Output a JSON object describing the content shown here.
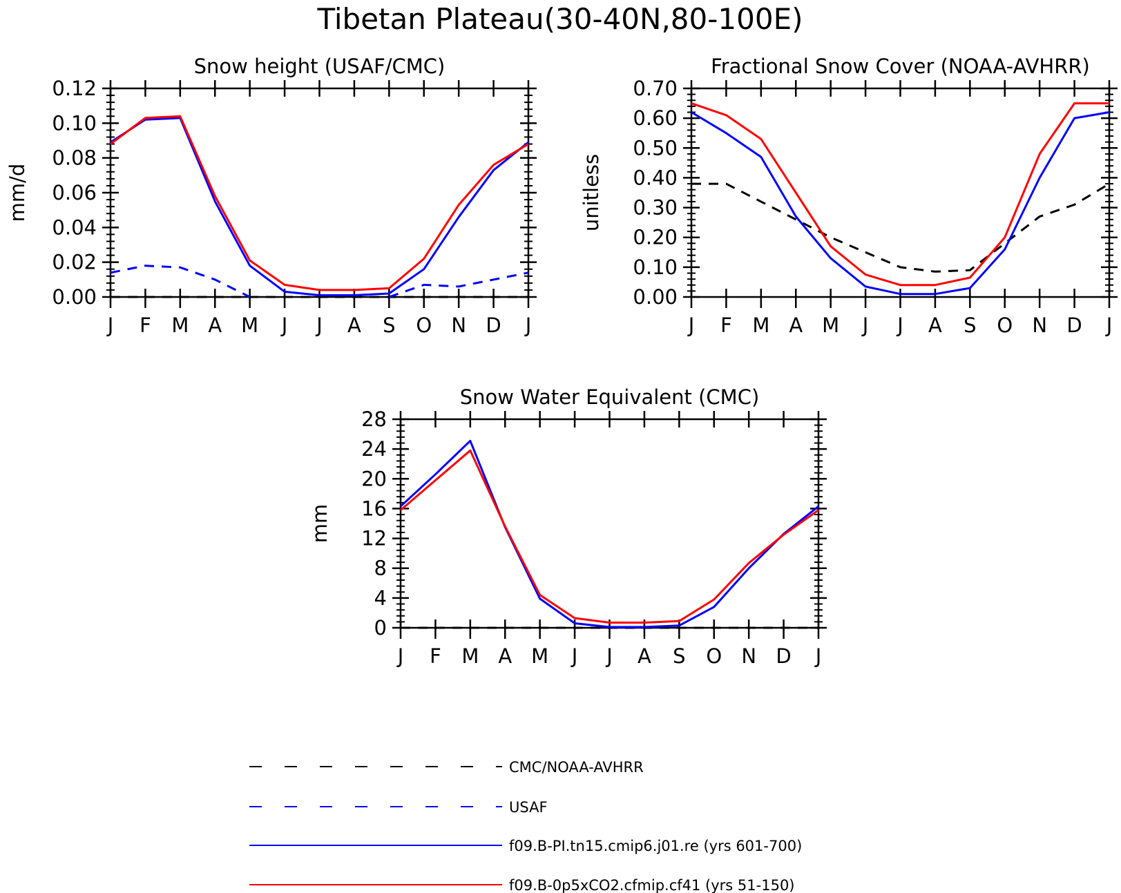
{
  "main_title": "Tibetan Plateau(30-40N,80-100E)",
  "colors": {
    "obs": "#000000",
    "usaf": "#0000ff",
    "pi": "#0000ff",
    "co2": "#ff0000"
  },
  "legend": [
    {
      "key": "obs",
      "label": "CMC/NOAA-AVHRR",
      "style": "dashed",
      "color": "#000000"
    },
    {
      "key": "usaf",
      "label": "USAF",
      "style": "dashed",
      "color": "#0000ff"
    },
    {
      "key": "pi",
      "label": "f09.B-PI.tn15.cmip6.j01.re (yrs 601-700)",
      "style": "solid",
      "color": "#0000ff"
    },
    {
      "key": "co2",
      "label": "f09.B-0p5xCO2.cfmip.cf41 (yrs 51-150)",
      "style": "solid",
      "color": "#ff0000"
    }
  ],
  "chart_data": [
    {
      "type": "line",
      "title": "Snow height (USAF/CMC)",
      "ylabel": "mm/d",
      "xlabel": "",
      "categories": [
        "J",
        "F",
        "M",
        "A",
        "M",
        "J",
        "J",
        "A",
        "S",
        "O",
        "N",
        "D",
        "J"
      ],
      "ylim": [
        0,
        0.12
      ],
      "yticks": [
        "0.00",
        "0.02",
        "0.04",
        "0.06",
        "0.08",
        "0.10",
        "0.12"
      ],
      "series": [
        {
          "name": "CMC/NOAA-AVHRR",
          "style": "dashed",
          "color": "#000000",
          "values": [
            0,
            0,
            0,
            0,
            0,
            0,
            0,
            0,
            0,
            0,
            0,
            0,
            0
          ]
        },
        {
          "name": "USAF",
          "style": "dashed",
          "color": "#0000ff",
          "values": [
            0.014,
            0.018,
            0.017,
            0.01,
            0.0,
            null,
            null,
            null,
            0.0,
            0.007,
            0.006,
            0.01,
            0.014
          ]
        },
        {
          "name": "f09.B-PI.tn15.cmip6.j01.re (yrs 601-700)",
          "style": "solid",
          "color": "#0000ff",
          "values": [
            0.089,
            0.102,
            0.103,
            0.055,
            0.018,
            0.003,
            0.001,
            0.001,
            0.002,
            0.016,
            0.046,
            0.073,
            0.089
          ]
        },
        {
          "name": "f09.B-0p5xCO2.cfmip.cf41 (yrs 51-150)",
          "style": "solid",
          "color": "#ff0000",
          "values": [
            0.088,
            0.103,
            0.104,
            0.058,
            0.021,
            0.007,
            0.004,
            0.004,
            0.005,
            0.022,
            0.053,
            0.076,
            0.088
          ]
        }
      ]
    },
    {
      "type": "line",
      "title": "Fractional Snow Cover (NOAA-AVHRR)",
      "ylabel": "unitless",
      "xlabel": "",
      "categories": [
        "J",
        "F",
        "M",
        "A",
        "M",
        "J",
        "J",
        "A",
        "S",
        "O",
        "N",
        "D",
        "J"
      ],
      "ylim": [
        0,
        0.7
      ],
      "yticks": [
        "0.00",
        "0.10",
        "0.20",
        "0.30",
        "0.40",
        "0.50",
        "0.60",
        "0.70"
      ],
      "series": [
        {
          "name": "CMC/NOAA-AVHRR",
          "style": "dashed",
          "color": "#000000",
          "values": [
            0.38,
            0.38,
            0.32,
            0.26,
            0.2,
            0.15,
            0.1,
            0.085,
            0.09,
            0.18,
            0.27,
            0.31,
            0.38
          ]
        },
        {
          "name": "f09.B-PI.tn15.cmip6.j01.re (yrs 601-700)",
          "style": "solid",
          "color": "#0000ff",
          "values": [
            0.62,
            0.55,
            0.47,
            0.27,
            0.13,
            0.035,
            0.01,
            0.01,
            0.03,
            0.16,
            0.4,
            0.6,
            0.62
          ]
        },
        {
          "name": "f09.B-0p5xCO2.cfmip.cf41 (yrs 51-150)",
          "style": "solid",
          "color": "#ff0000",
          "values": [
            0.65,
            0.61,
            0.53,
            0.35,
            0.17,
            0.075,
            0.04,
            0.04,
            0.065,
            0.2,
            0.48,
            0.65,
            0.65
          ]
        }
      ]
    },
    {
      "type": "line",
      "title": "Snow Water Equivalent (CMC)",
      "ylabel": "mm",
      "xlabel": "",
      "categories": [
        "J",
        "F",
        "M",
        "A",
        "M",
        "J",
        "J",
        "A",
        "S",
        "O",
        "N",
        "D",
        "J"
      ],
      "ylim": [
        0,
        28
      ],
      "yticks": [
        "0",
        "4",
        "8",
        "12",
        "16",
        "20",
        "24",
        "28"
      ],
      "series": [
        {
          "name": "CMC/NOAA-AVHRR",
          "style": "dashed",
          "color": "#000000",
          "values": [
            0,
            0,
            0,
            0,
            0,
            0,
            0,
            0,
            0,
            0,
            0,
            0,
            0
          ]
        },
        {
          "name": "f09.B-PI.tn15.cmip6.j01.re (yrs 601-700)",
          "style": "solid",
          "color": "#0000ff",
          "values": [
            16.3,
            20.6,
            25.1,
            13.5,
            3.9,
            0.6,
            0.1,
            0.1,
            0.3,
            2.8,
            8.0,
            12.6,
            16.3
          ]
        },
        {
          "name": "f09.B-0p5xCO2.cfmip.cf41 (yrs 51-150)",
          "style": "solid",
          "color": "#ff0000",
          "values": [
            15.8,
            19.8,
            23.8,
            13.6,
            4.4,
            1.3,
            0.7,
            0.7,
            0.9,
            3.8,
            8.7,
            12.5,
            15.8
          ]
        }
      ]
    }
  ]
}
